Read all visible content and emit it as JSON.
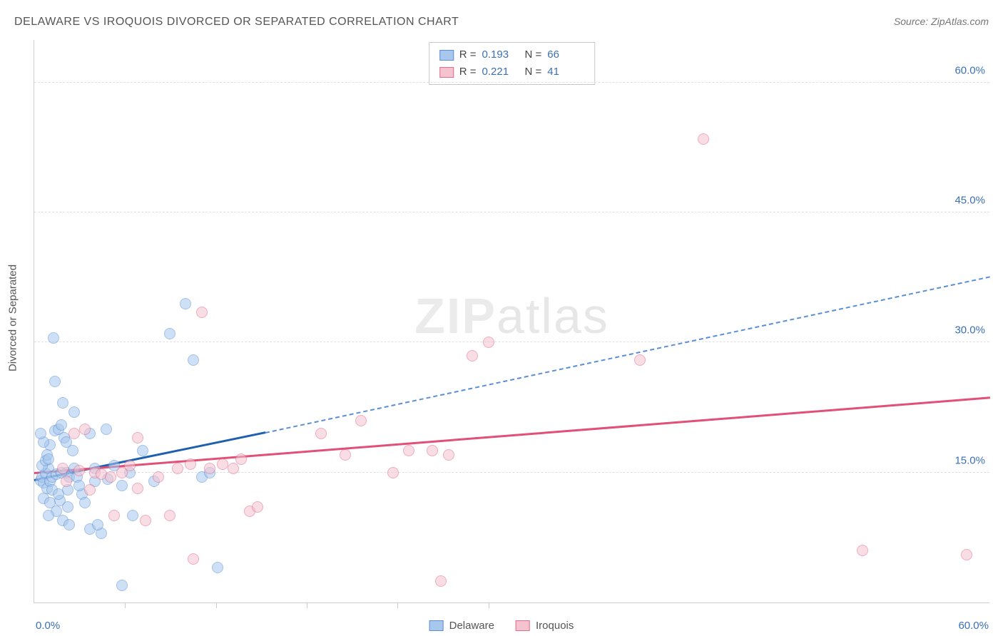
{
  "title": "DELAWARE VS IROQUOIS DIVORCED OR SEPARATED CORRELATION CHART",
  "source": "Source: ZipAtlas.com",
  "watermark": "ZIPatlas",
  "ylabel": "Divorced or Separated",
  "chart": {
    "type": "scatter",
    "xlim": [
      0,
      60
    ],
    "ylim": [
      0,
      65
    ],
    "yticks": [
      15,
      30,
      45,
      60
    ],
    "ytick_labels": [
      "15.0%",
      "30.0%",
      "45.0%",
      "60.0%"
    ],
    "xticks_minor": [
      5.7,
      11.4,
      17.1,
      22.8,
      28.5
    ],
    "xtick_start_label": "0.0%",
    "xtick_end_label": "60.0%",
    "background_color": "#ffffff",
    "grid_color": "#e0e0e0",
    "marker_radius": 8,
    "marker_opacity": 0.55,
    "series": [
      {
        "name": "Delaware",
        "label": "Delaware",
        "fill": "#a7c7ed",
        "stroke": "#5a8fd6",
        "trend_color": "#1f5fb0",
        "trend_dash_color": "#5a8fd6",
        "R": "0.193",
        "N": "66",
        "points": [
          [
            0.4,
            14.1
          ],
          [
            0.5,
            14.5
          ],
          [
            0.6,
            13.8
          ],
          [
            0.7,
            14.9
          ],
          [
            0.8,
            13.2
          ],
          [
            0.9,
            15.5
          ],
          [
            1.0,
            14.0
          ],
          [
            1.1,
            13.0
          ],
          [
            0.5,
            15.8
          ],
          [
            0.7,
            16.4
          ],
          [
            0.8,
            17.0
          ],
          [
            1.0,
            18.2
          ],
          [
            1.3,
            19.8
          ],
          [
            1.5,
            20.0
          ],
          [
            1.7,
            20.5
          ],
          [
            1.1,
            14.5
          ],
          [
            1.9,
            19.0
          ],
          [
            2.0,
            15.0
          ],
          [
            2.1,
            13.0
          ],
          [
            2.2,
            14.5
          ],
          [
            2.0,
            18.5
          ],
          [
            2.5,
            15.5
          ],
          [
            2.7,
            14.5
          ],
          [
            3.0,
            12.5
          ],
          [
            0.6,
            12.0
          ],
          [
            1.0,
            11.5
          ],
          [
            1.4,
            10.5
          ],
          [
            1.8,
            9.5
          ],
          [
            2.2,
            9.0
          ],
          [
            3.5,
            8.5
          ],
          [
            4.2,
            8.0
          ],
          [
            0.9,
            10.0
          ],
          [
            1.6,
            11.8
          ],
          [
            2.4,
            17.5
          ],
          [
            1.8,
            23.0
          ],
          [
            2.5,
            22.0
          ],
          [
            1.2,
            30.5
          ],
          [
            1.3,
            25.5
          ],
          [
            3.5,
            19.5
          ],
          [
            4.5,
            20.0
          ],
          [
            3.8,
            15.5
          ],
          [
            4.6,
            14.2
          ],
          [
            5.0,
            15.8
          ],
          [
            5.5,
            13.5
          ],
          [
            6.0,
            15.0
          ],
          [
            6.8,
            17.5
          ],
          [
            7.5,
            14.0
          ],
          [
            8.5,
            31.0
          ],
          [
            9.5,
            34.5
          ],
          [
            10.0,
            28.0
          ],
          [
            10.5,
            14.5
          ],
          [
            11.0,
            15.0
          ],
          [
            11.5,
            4.0
          ],
          [
            6.2,
            10.0
          ],
          [
            3.8,
            14.0
          ],
          [
            4.0,
            9.0
          ],
          [
            5.5,
            2.0
          ],
          [
            2.8,
            13.5
          ],
          [
            1.4,
            14.8
          ],
          [
            0.9,
            16.5
          ],
          [
            1.7,
            15.0
          ],
          [
            0.6,
            18.5
          ],
          [
            2.1,
            11.0
          ],
          [
            3.2,
            11.5
          ],
          [
            0.4,
            19.5
          ],
          [
            1.5,
            12.5
          ]
        ],
        "trend": {
          "x1": 0,
          "y1": 14.0,
          "x2_solid": 14.5,
          "y2_solid": 19.5,
          "x2_dash": 60,
          "y2_dash": 37.5
        }
      },
      {
        "name": "Iroquois",
        "label": "Iroquois",
        "fill": "#f5c2cf",
        "stroke": "#e26a8a",
        "trend_color": "#e05078",
        "R": "0.221",
        "N": "41",
        "points": [
          [
            2.5,
            19.5
          ],
          [
            3.2,
            20.0
          ],
          [
            3.8,
            15.0
          ],
          [
            4.2,
            14.8
          ],
          [
            3.5,
            13.0
          ],
          [
            4.8,
            14.5
          ],
          [
            5.5,
            15.0
          ],
          [
            6.0,
            15.8
          ],
          [
            5.0,
            10.0
          ],
          [
            6.5,
            19.0
          ],
          [
            7.0,
            9.5
          ],
          [
            7.8,
            14.5
          ],
          [
            8.5,
            10.0
          ],
          [
            9.0,
            15.5
          ],
          [
            9.8,
            16.0
          ],
          [
            10.5,
            33.5
          ],
          [
            11.0,
            15.5
          ],
          [
            11.8,
            16.0
          ],
          [
            12.5,
            15.5
          ],
          [
            13.0,
            16.5
          ],
          [
            13.5,
            10.5
          ],
          [
            14.0,
            11.0
          ],
          [
            10.0,
            5.0
          ],
          [
            18.0,
            19.5
          ],
          [
            19.5,
            17.0
          ],
          [
            20.5,
            21.0
          ],
          [
            22.5,
            15.0
          ],
          [
            23.5,
            17.5
          ],
          [
            25.0,
            17.5
          ],
          [
            26.0,
            17.0
          ],
          [
            27.5,
            28.5
          ],
          [
            28.5,
            30.0
          ],
          [
            25.5,
            2.5
          ],
          [
            38.0,
            28.0
          ],
          [
            42.0,
            53.5
          ],
          [
            52.0,
            6.0
          ],
          [
            58.5,
            5.5
          ],
          [
            1.8,
            15.5
          ],
          [
            2.0,
            14.0
          ],
          [
            2.8,
            15.2
          ],
          [
            6.5,
            13.2
          ]
        ],
        "trend": {
          "x1": 0,
          "y1": 14.8,
          "x2_solid": 60,
          "y2_solid": 23.5
        }
      }
    ]
  },
  "legend_top": [
    {
      "swatch_fill": "#a7c7ed",
      "swatch_stroke": "#5a8fd6",
      "r_label": "R =",
      "r": "0.193",
      "n_label": "N =",
      "n": "66"
    },
    {
      "swatch_fill": "#f5c2cf",
      "swatch_stroke": "#e26a8a",
      "r_label": "R =",
      "r": "0.221",
      "n_label": "N =",
      "n": "41"
    }
  ],
  "legend_bottom": [
    {
      "swatch_fill": "#a7c7ed",
      "swatch_stroke": "#5a8fd6",
      "label": "Delaware"
    },
    {
      "swatch_fill": "#f5c2cf",
      "swatch_stroke": "#e26a8a",
      "label": "Iroquois"
    }
  ]
}
